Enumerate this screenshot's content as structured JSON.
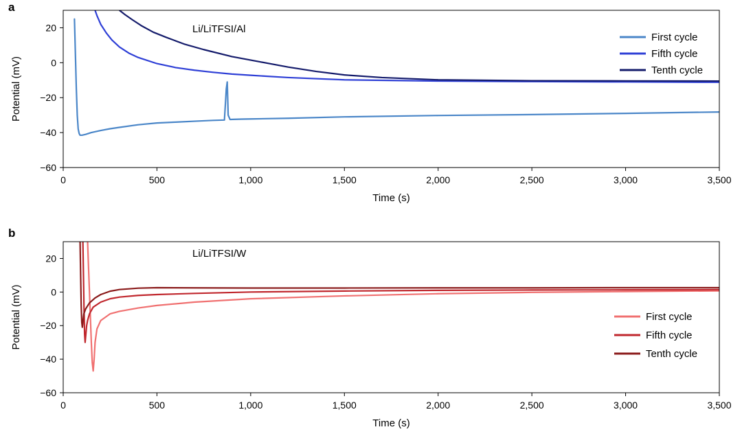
{
  "chart_data": [
    {
      "panel_label": "a",
      "type": "line",
      "annotation": "Li/LiTFSI/Al",
      "xlabel": "Time (s)",
      "ylabel": "Potential (mV)",
      "xlim": [
        0,
        3500
      ],
      "ylim": [
        -60,
        30
      ],
      "xticks": [
        0,
        500,
        1000,
        1500,
        2000,
        2500,
        3000,
        3500
      ],
      "xtick_labels": [
        "0",
        "500",
        "1,000",
        "1,500",
        "2,000",
        "2,500",
        "3,000",
        "3,500"
      ],
      "yticks": [
        -60,
        -40,
        -20,
        0,
        20
      ],
      "ytick_labels": [
        "−60",
        "−40",
        "−20",
        "0",
        "20"
      ],
      "grid": false,
      "legend_position": "top-right",
      "series": [
        {
          "name": "First cycle",
          "color": "#4a86c8",
          "x": [
            60,
            65,
            70,
            75,
            80,
            85,
            90,
            100,
            120,
            150,
            200,
            250,
            300,
            400,
            500,
            600,
            700,
            800,
            860,
            870,
            875,
            880,
            890,
            950,
            1000,
            1200,
            1500,
            2000,
            2500,
            3000,
            3500
          ],
          "y": [
            25,
            5,
            -15,
            -30,
            -38,
            -40.5,
            -41.5,
            -41.5,
            -41,
            -40,
            -38.8,
            -37.8,
            -37,
            -35.5,
            -34.5,
            -34,
            -33.5,
            -33,
            -32.8,
            -15,
            -11,
            -30,
            -32.5,
            -32.3,
            -32.2,
            -31.8,
            -31,
            -30.2,
            -29.7,
            -29,
            -28.2
          ]
        },
        {
          "name": "Fifth cycle",
          "color": "#2e3fd6",
          "x": [
            170,
            180,
            200,
            230,
            260,
            300,
            350,
            400,
            500,
            600,
            700,
            800,
            900,
            1000,
            1200,
            1500,
            2000,
            2500,
            3000,
            3500
          ],
          "y": [
            30,
            27,
            22,
            17,
            13,
            9,
            5.5,
            3,
            -0.5,
            -2.8,
            -4.3,
            -5.5,
            -6.5,
            -7.2,
            -8.5,
            -9.8,
            -10.5,
            -10.8,
            -11,
            -11.2
          ]
        },
        {
          "name": "Tenth cycle",
          "color": "#141b6b",
          "x": [
            300,
            330,
            370,
            420,
            480,
            550,
            650,
            750,
            900,
            1050,
            1200,
            1350,
            1500,
            1700,
            2000,
            2500,
            3000,
            3500
          ],
          "y": [
            30,
            27.5,
            24.5,
            21,
            17.5,
            14.5,
            10.5,
            7.5,
            3.5,
            0.5,
            -2.5,
            -5,
            -7,
            -8.5,
            -9.8,
            -10.3,
            -10.4,
            -10.5
          ]
        }
      ]
    },
    {
      "panel_label": "b",
      "type": "line",
      "annotation": "Li/LiTFSI/W",
      "xlabel": "Time (s)",
      "ylabel": "Potential (mV)",
      "xlim": [
        0,
        3500
      ],
      "ylim": [
        -60,
        30
      ],
      "xticks": [
        0,
        500,
        1000,
        1500,
        2000,
        2500,
        3000,
        3500
      ],
      "xtick_labels": [
        "0",
        "500",
        "1,000",
        "1,500",
        "2,000",
        "2,500",
        "3,000",
        "3,500"
      ],
      "yticks": [
        -60,
        -40,
        -20,
        0,
        20
      ],
      "ytick_labels": [
        "−60",
        "−40",
        "−20",
        "0",
        "20"
      ],
      "grid": false,
      "legend_position": "right",
      "series": [
        {
          "name": "First cycle",
          "color": "#f07070",
          "x": [
            130,
            135,
            140,
            145,
            150,
            155,
            160,
            165,
            170,
            180,
            200,
            250,
            300,
            400,
            500,
            700,
            1000,
            1500,
            2000,
            2500,
            3000,
            3500
          ],
          "y": [
            30,
            15,
            0,
            -15,
            -30,
            -42,
            -47,
            -40,
            -30,
            -22,
            -17,
            -13,
            -11.5,
            -9.5,
            -8,
            -6,
            -4,
            -2.3,
            -1,
            -0.2,
            0.3,
            0.7
          ]
        },
        {
          "name": "Fifth cycle",
          "color": "#c0272d",
          "x": [
            105,
            108,
            111,
            114,
            117,
            121,
            125,
            130,
            140,
            160,
            200,
            250,
            300,
            400,
            500,
            700,
            1000,
            1500,
            2000,
            2500,
            3000,
            3500
          ],
          "y": [
            30,
            10,
            -10,
            -25,
            -30,
            -25,
            -20,
            -17,
            -13,
            -9,
            -6,
            -4,
            -3,
            -2,
            -1.5,
            -0.8,
            0,
            0.6,
            1,
            1.2,
            1.3,
            1.4
          ]
        },
        {
          "name": "Tenth cycle",
          "color": "#8a1a1a",
          "x": [
            90,
            93,
            96,
            99,
            102,
            106,
            110,
            120,
            140,
            170,
            200,
            250,
            300,
            400,
            500,
            700,
            1000,
            1500,
            2000,
            2500,
            3000,
            3500
          ],
          "y": [
            30,
            10,
            -8,
            -18,
            -21,
            -17,
            -13,
            -10,
            -6.5,
            -3.5,
            -1.5,
            0.5,
            1.5,
            2.3,
            2.6,
            2.5,
            2.4,
            2.4,
            2.5,
            2.5,
            2.6,
            2.6
          ]
        }
      ]
    }
  ]
}
